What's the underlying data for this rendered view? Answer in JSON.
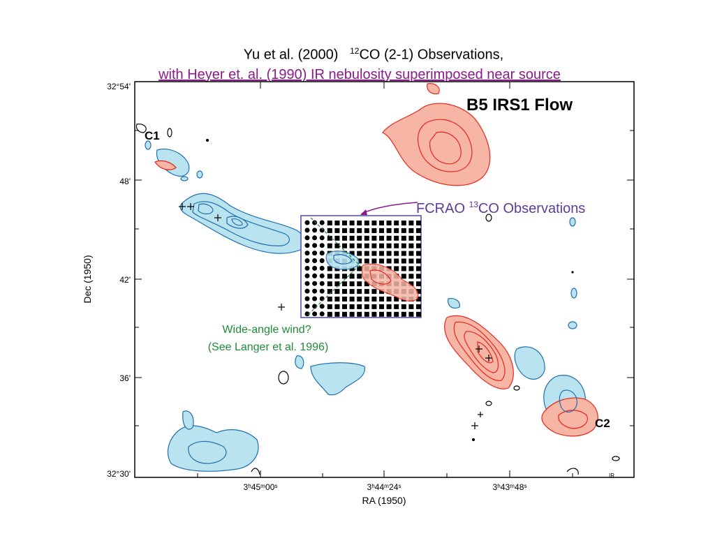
{
  "title": {
    "line1_prefix": "Yu et al. (2000)",
    "line1_iso": "12",
    "line1_suffix": "CO (2-1) Observations,",
    "line2": "with Heyer et. al. (1990) IR nebulosity superimposed near source"
  },
  "panel": {
    "label": "B5 IRS1 Flow",
    "c1_label": "C1",
    "c2_label": "C2",
    "corner_mark": "IR"
  },
  "axes": {
    "xlabel": "RA (1950)",
    "ylabel": "Dec (1950)",
    "xticks": [
      "3ʰ45ᵐ00ˢ",
      "3ʰ44ᵐ24ˢ",
      "3ʰ43ᵐ48ˢ"
    ],
    "yticks": [
      "32°54'",
      "48'",
      "42'",
      "36'",
      "32°30'"
    ]
  },
  "annotations": {
    "fcrao_prefix": "FCRAO ",
    "fcrao_iso": "13",
    "fcrao_suffix": "CO Observations",
    "wind_line1": "Wide-angle wind?",
    "wind_line2": "(See Langer et al. 1996)"
  },
  "colors": {
    "red_fill": "#f7b5a6",
    "red_line": "#e8261a",
    "blue_fill": "#b8e3ef",
    "blue_line": "#1f6fb0",
    "purple": "#5a3d9a",
    "magenta": "#8b1a8b",
    "green": "#1f8a3a",
    "box": "#4a4aa0"
  }
}
